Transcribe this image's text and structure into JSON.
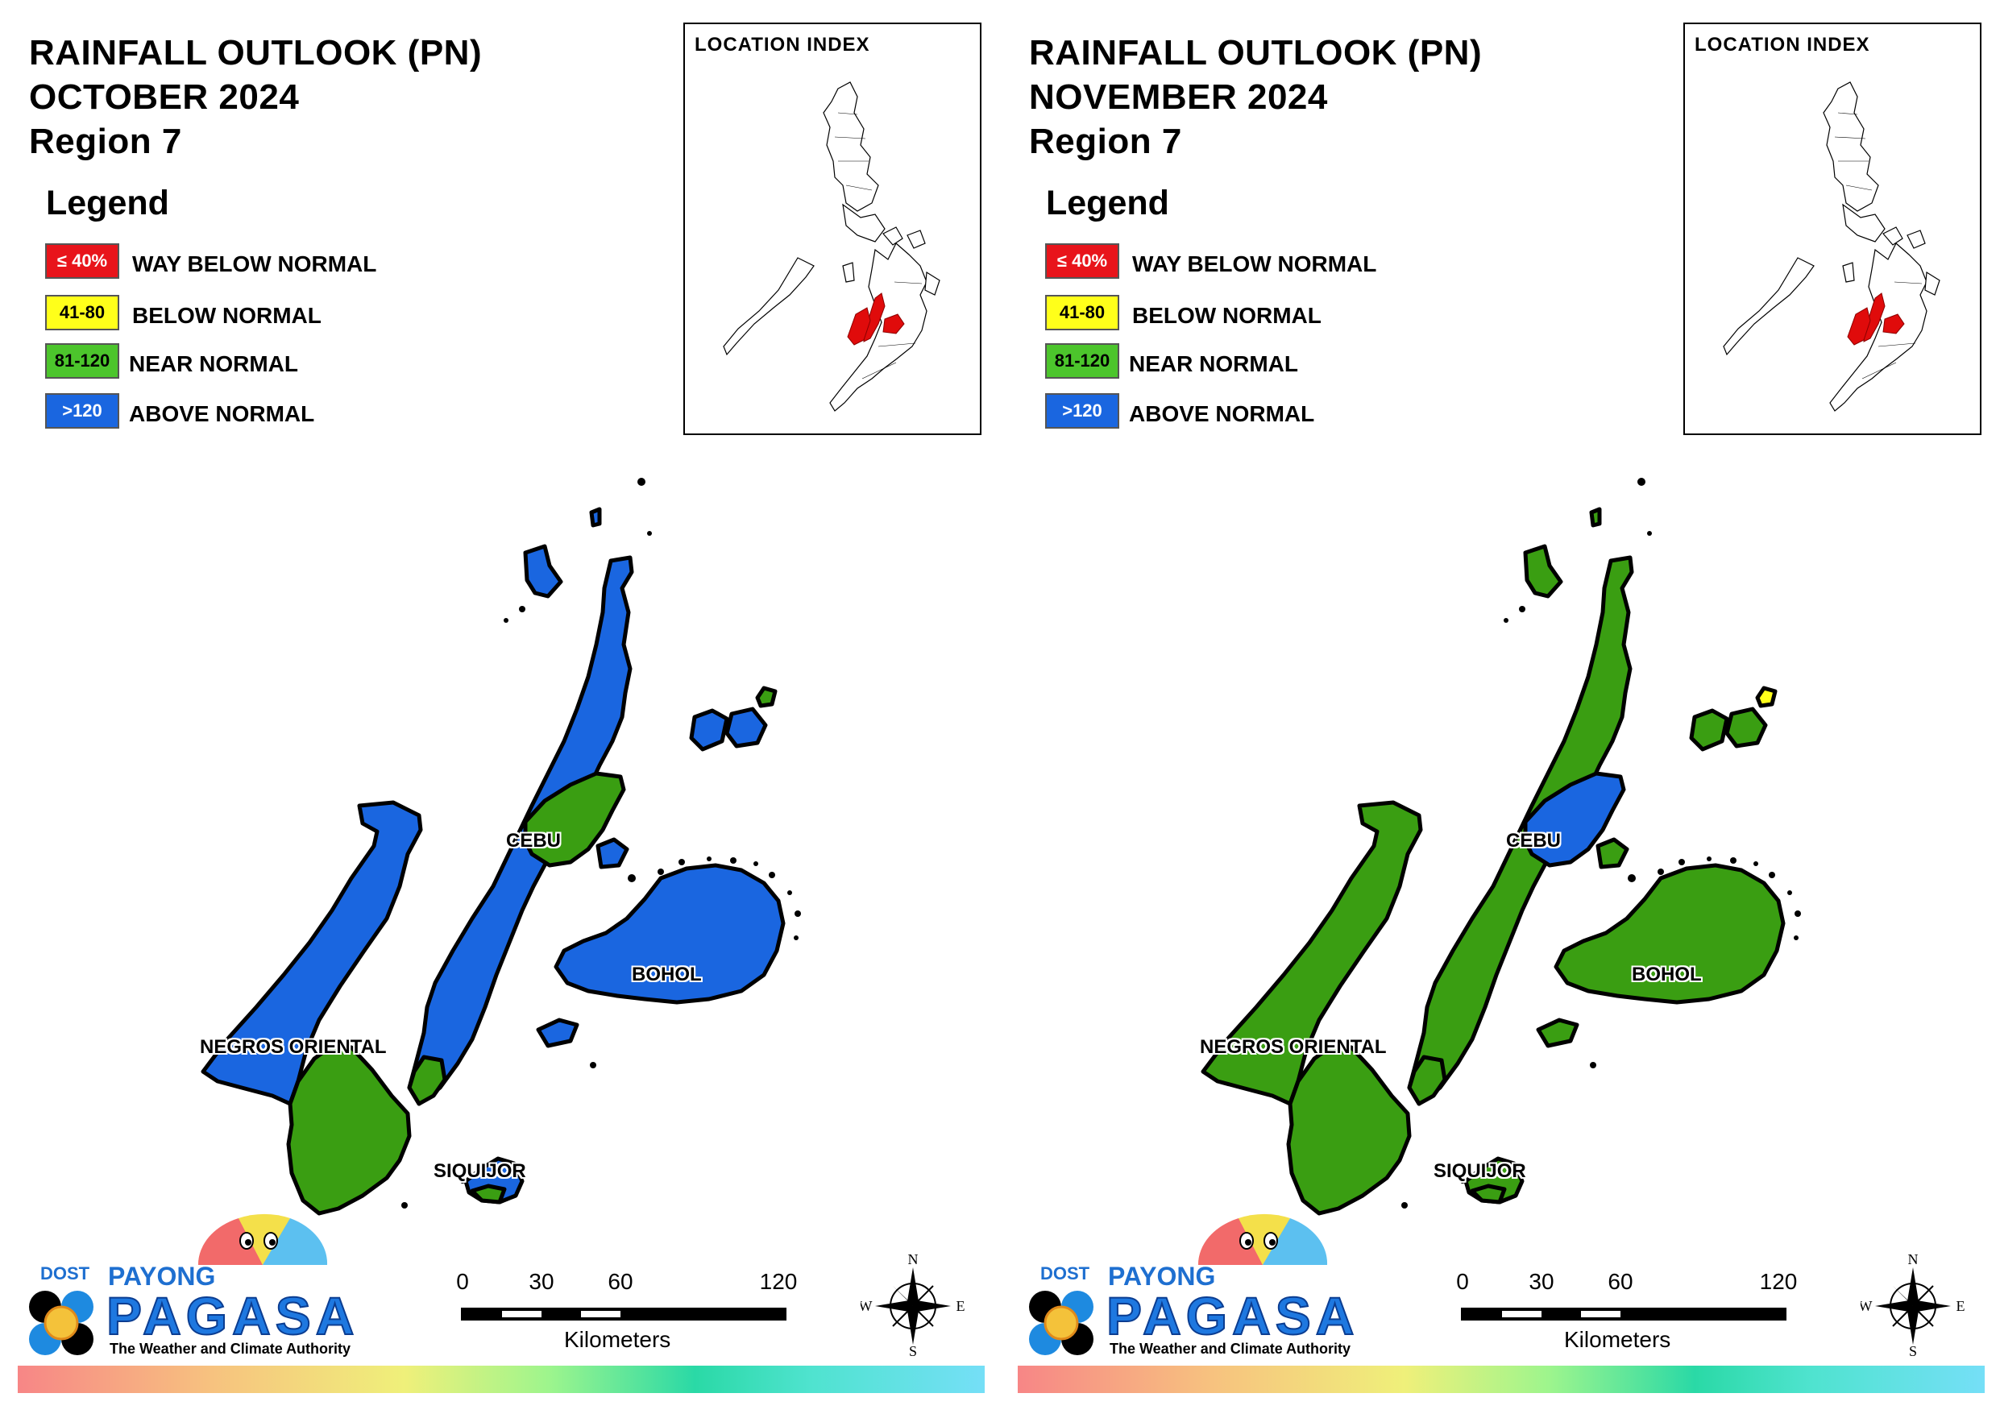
{
  "panels": [
    {
      "title_line1": "RAINFALL OUTLOOK (PN)",
      "title_line2": "OCTOBER 2024",
      "title_line3": "Region 7",
      "legend_heading": "Legend",
      "legend": [
        {
          "range": "≤ 40%",
          "label": "WAY BELOW NORMAL",
          "color": "#e8141b",
          "text_color": "#ffffff"
        },
        {
          "range": "41-80",
          "label": "BELOW NORMAL",
          "color": "#ffff1a",
          "text_color": "#000000"
        },
        {
          "range": "81-120",
          "label": "NEAR NORMAL",
          "color": "#4cc52c",
          "text_color": "#000000"
        },
        {
          "range": ">120",
          "label": "ABOVE NORMAL",
          "color": "#1a66e0",
          "text_color": "#ffffff"
        }
      ],
      "location_index_title": "LOCATION INDEX",
      "places": [
        "CEBU",
        "BOHOL",
        "NEGROS ORIENTAL",
        "SIQUIJOR"
      ],
      "region_categories": {
        "cebu_main": "ABOVE NORMAL",
        "cebu_central_east": "NEAR NORMAL",
        "cebu_south_tip": "NEAR NORMAL",
        "bohol": "ABOVE NORMAL",
        "negros_north": "ABOVE NORMAL",
        "negros_south": "NEAR NORMAL",
        "siquijor": "ABOVE NORMAL",
        "siquijor_south": "NEAR NORMAL",
        "bantayan_camotes": "ABOVE NORMAL"
      },
      "fill_colors": {
        "above": "#1a66e0",
        "near": "#3a9e12",
        "below": "#ffff1a"
      }
    },
    {
      "title_line1": "RAINFALL OUTLOOK (PN)",
      "title_line2": "NOVEMBER 2024",
      "title_line3": "Region 7",
      "legend_heading": "Legend",
      "legend": [
        {
          "range": "≤ 40%",
          "label": "WAY BELOW NORMAL",
          "color": "#e8141b",
          "text_color": "#ffffff"
        },
        {
          "range": "41-80",
          "label": "BELOW NORMAL",
          "color": "#ffff1a",
          "text_color": "#000000"
        },
        {
          "range": "81-120",
          "label": "NEAR NORMAL",
          "color": "#4cc52c",
          "text_color": "#000000"
        },
        {
          "range": ">120",
          "label": "ABOVE NORMAL",
          "color": "#1a66e0",
          "text_color": "#ffffff"
        }
      ],
      "location_index_title": "LOCATION INDEX",
      "places": [
        "CEBU",
        "BOHOL",
        "NEGROS ORIENTAL",
        "SIQUIJOR"
      ],
      "region_categories": {
        "cebu_main": "NEAR NORMAL",
        "cebu_central_east": "ABOVE NORMAL",
        "cebu_south_tip": "NEAR NORMAL",
        "bohol": "NEAR NORMAL",
        "negros_north": "NEAR NORMAL",
        "negros_south": "NEAR NORMAL",
        "siquijor": "NEAR NORMAL",
        "siquijor_south": "NEAR NORMAL",
        "bantayan_camotes": "NEAR NORMAL",
        "camotes_northeast_islet": "BELOW NORMAL"
      },
      "fill_colors": {
        "above": "#1a66e0",
        "near": "#3a9e12",
        "below": "#ffff1a"
      }
    }
  ],
  "logo": {
    "dost": "DOST",
    "payong": "PAYONG",
    "pagasa": "PAGASA",
    "tagline": "The Weather and Climate Authority"
  },
  "scale_bar": {
    "ticks": [
      "0",
      "30",
      "60",
      "120"
    ],
    "tick_values": [
      0,
      30,
      60,
      120
    ],
    "unit": "Kilometers"
  },
  "compass": {
    "n": "N",
    "s": "S",
    "e": "E",
    "w": "W"
  }
}
